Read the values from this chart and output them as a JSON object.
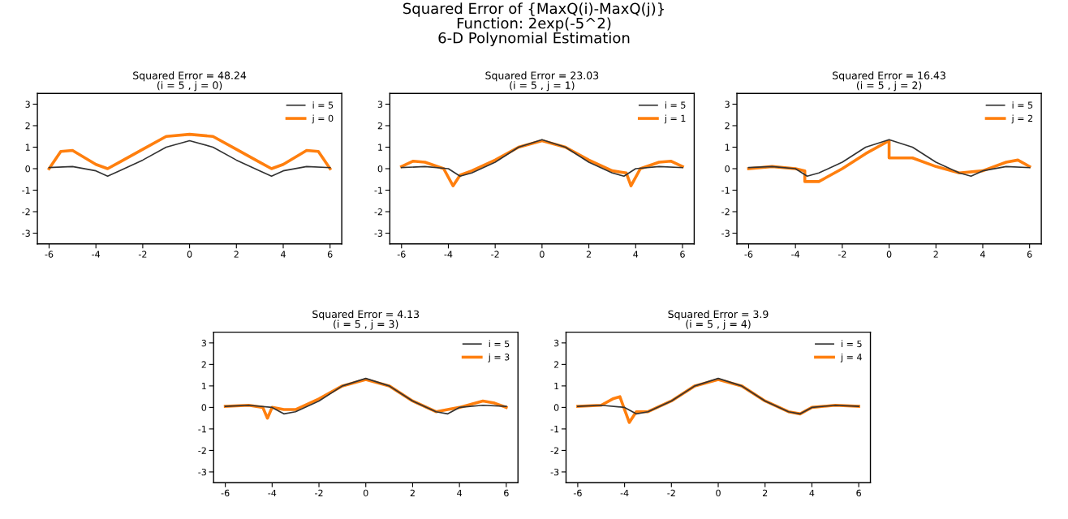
{
  "chart_data": [
    {
      "type": "line",
      "annotations": [
        "Squared Error of {MaxQ(i)-MaxQ(j)}\nFunction: 2exp(-5^2)\n6-D Polynomial Estimation"
      ],
      "title": "Squared Error = 48.24",
      "subtitle": "(i = 5 , j = 0)",
      "xlim": [
        -6.5,
        6.5
      ],
      "ylim": [
        -3.5,
        3.5
      ],
      "xticks": [
        -6,
        -4,
        -2,
        0,
        2,
        4,
        6
      ],
      "yticks": [
        -3,
        -2,
        -1,
        0,
        1,
        2,
        3
      ],
      "legend": "top right",
      "grid": false,
      "series": [
        {
          "name": "i = 5",
          "color": "#333333",
          "x": [
            -6,
            -5,
            -4,
            -3.5,
            -3,
            -2,
            -1,
            0,
            1,
            2,
            3,
            3.5,
            4,
            5,
            6
          ],
          "values": [
            0.05,
            0.1,
            -0.1,
            -0.35,
            -0.1,
            0.4,
            1.0,
            1.3,
            1.0,
            0.4,
            -0.1,
            -0.35,
            -0.1,
            0.1,
            0.05
          ]
        },
        {
          "name": "j = 0",
          "color": "#ff7f0e",
          "x": [
            -6,
            -5.5,
            -5,
            -4,
            -3.5,
            -3,
            -2,
            -1,
            0,
            1,
            2,
            3,
            3.5,
            4,
            5,
            5.5,
            6
          ],
          "values": [
            0,
            0.8,
            0.85,
            0.2,
            0,
            0.3,
            0.9,
            1.5,
            1.6,
            1.5,
            0.9,
            0.3,
            0,
            0.2,
            0.85,
            0.8,
            0
          ]
        }
      ]
    },
    {
      "type": "line",
      "title": "Squared Error = 23.03",
      "subtitle": "(i = 5 , j = 1)",
      "xlim": [
        -6.5,
        6.5
      ],
      "ylim": [
        -3.5,
        3.5
      ],
      "xticks": [
        -6,
        -4,
        -2,
        0,
        2,
        4,
        6
      ],
      "yticks": [
        -3,
        -2,
        -1,
        0,
        1,
        2,
        3
      ],
      "legend": "top right",
      "grid": false,
      "series": [
        {
          "name": "i = 5",
          "color": "#333333",
          "x": [
            -6,
            -5,
            -4,
            -3.5,
            -3,
            -2,
            -1,
            0,
            1,
            2,
            3,
            3.5,
            4,
            5,
            6
          ],
          "values": [
            0.05,
            0.1,
            0,
            -0.35,
            -0.2,
            0.3,
            1.0,
            1.35,
            1.0,
            0.3,
            -0.2,
            -0.35,
            0,
            0.1,
            0.05
          ]
        },
        {
          "name": "j = 1",
          "color": "#ff7f0e",
          "x": [
            -6,
            -5.5,
            -5,
            -4.2,
            -3.8,
            -3.5,
            -3,
            -2,
            -1,
            0,
            1,
            2,
            3,
            3.6,
            3.8,
            4.2,
            5,
            5.5,
            6
          ],
          "values": [
            0.1,
            0.35,
            0.3,
            0,
            -0.8,
            -0.3,
            -0.1,
            0.4,
            1.0,
            1.3,
            1.0,
            0.4,
            -0.1,
            -0.2,
            -0.8,
            0,
            0.3,
            0.35,
            0.1
          ]
        }
      ]
    },
    {
      "type": "line",
      "title": "Squared Error = 16.43",
      "subtitle": "(i = 5 , j = 2)",
      "xlim": [
        -6.5,
        6.5
      ],
      "ylim": [
        -3.5,
        3.5
      ],
      "xticks": [
        -6,
        -4,
        -2,
        0,
        2,
        4,
        6
      ],
      "yticks": [
        -3,
        -2,
        -1,
        0,
        1,
        2,
        3
      ],
      "legend": "top right",
      "grid": false,
      "series": [
        {
          "name": "i = 5",
          "color": "#333333",
          "x": [
            -6,
            -5,
            -4,
            -3.5,
            -3,
            -2,
            -1,
            0,
            1,
            2,
            3,
            3.5,
            4,
            5,
            6
          ],
          "values": [
            0.05,
            0.1,
            0,
            -0.35,
            -0.2,
            0.3,
            1.0,
            1.35,
            1.0,
            0.3,
            -0.2,
            -0.35,
            -0.1,
            0.1,
            0.05
          ]
        },
        {
          "name": "j = 2",
          "color": "#ff7f0e",
          "x": [
            -6,
            -5,
            -4,
            -3.6,
            -3.6,
            -3,
            -2,
            -1,
            0,
            0,
            1,
            2,
            3,
            4,
            5,
            5.5,
            6
          ],
          "values": [
            0,
            0.1,
            0,
            -0.1,
            -0.6,
            -0.6,
            0,
            0.7,
            1.3,
            0.5,
            0.5,
            0.1,
            -0.2,
            -0.1,
            0.3,
            0.4,
            0.1
          ]
        }
      ]
    },
    {
      "type": "line",
      "title": "Squared Error = 4.13",
      "subtitle": "(i = 5 , j = 3)",
      "xlim": [
        -6.5,
        6.5
      ],
      "ylim": [
        -3.5,
        3.5
      ],
      "xticks": [
        -6,
        -4,
        -2,
        0,
        2,
        4,
        6
      ],
      "yticks": [
        -3,
        -2,
        -1,
        0,
        1,
        2,
        3
      ],
      "legend": "top right",
      "grid": false,
      "series": [
        {
          "name": "i = 5",
          "color": "#333333",
          "x": [
            -6,
            -5,
            -4,
            -3.5,
            -3,
            -2,
            -1,
            0,
            1,
            2,
            3,
            3.5,
            4,
            5,
            6
          ],
          "values": [
            0.05,
            0.1,
            0,
            -0.3,
            -0.2,
            0.3,
            1.0,
            1.35,
            1.0,
            0.3,
            -0.2,
            -0.3,
            0,
            0.1,
            0.05
          ]
        },
        {
          "name": "j = 3",
          "color": "#ff7f0e",
          "x": [
            -6,
            -5,
            -4.4,
            -4.2,
            -4,
            -3.5,
            -3,
            -2,
            -1,
            0,
            1,
            2,
            3,
            3.5,
            4,
            5,
            5.5,
            6
          ],
          "values": [
            0.05,
            0.1,
            0,
            -0.5,
            0,
            -0.1,
            -0.1,
            0.4,
            1.0,
            1.3,
            1.0,
            0.3,
            -0.2,
            -0.1,
            0,
            0.3,
            0.2,
            0
          ]
        }
      ]
    },
    {
      "type": "line",
      "title": "Squared Error = 3.9",
      "subtitle": "(i = 5 , j = 4)",
      "xlim": [
        -6.5,
        6.5
      ],
      "ylim": [
        -3.5,
        3.5
      ],
      "xticks": [
        -6,
        -4,
        -2,
        0,
        2,
        4,
        6
      ],
      "yticks": [
        -3,
        -2,
        -1,
        0,
        1,
        2,
        3
      ],
      "legend": "top right",
      "grid": false,
      "series": [
        {
          "name": "i = 5",
          "color": "#333333",
          "x": [
            -6,
            -5,
            -4,
            -3.5,
            -3,
            -2,
            -1,
            0,
            1,
            2,
            3,
            3.5,
            4,
            5,
            6
          ],
          "values": [
            0.05,
            0.1,
            0,
            -0.3,
            -0.2,
            0.3,
            1.0,
            1.35,
            1.0,
            0.3,
            -0.2,
            -0.3,
            0,
            0.1,
            0.05
          ]
        },
        {
          "name": "j = 4",
          "color": "#ff7f0e",
          "x": [
            -6,
            -5,
            -4.5,
            -4.2,
            -4,
            -3.8,
            -3.5,
            -3,
            -2,
            -1,
            0,
            1,
            2,
            3,
            3.5,
            4,
            5,
            6
          ],
          "values": [
            0.05,
            0.1,
            0.4,
            0.5,
            -0.1,
            -0.7,
            -0.2,
            -0.2,
            0.3,
            1.0,
            1.3,
            1.0,
            0.3,
            -0.2,
            -0.3,
            0,
            0.1,
            0.05
          ]
        }
      ]
    }
  ]
}
